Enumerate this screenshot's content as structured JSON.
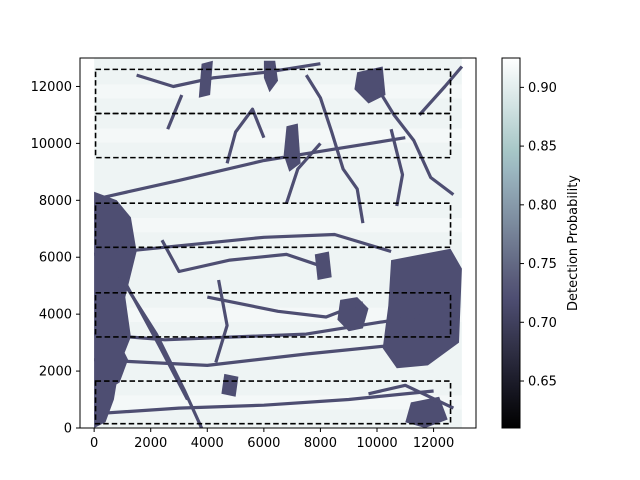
{
  "chart_data": {
    "type": "heatmap",
    "title": "",
    "xlabel": "",
    "ylabel": "",
    "xlim": [
      -500,
      13500
    ],
    "ylim": [
      0,
      13000
    ],
    "x_ticks": [
      0,
      2000,
      4000,
      6000,
      8000,
      10000,
      12000
    ],
    "y_ticks": [
      0,
      2000,
      4000,
      6000,
      8000,
      10000,
      12000
    ],
    "x_tick_labels": [
      "0",
      "2000",
      "4000",
      "6000",
      "8000",
      "10000",
      "12000"
    ],
    "y_tick_labels": [
      "0",
      "2000",
      "4000",
      "6000",
      "8000",
      "10000",
      "12000"
    ],
    "colormap": "bone",
    "field_extent": {
      "x": [
        0,
        13000
      ],
      "y": [
        0,
        13000
      ]
    },
    "background_probability": 0.91,
    "feature_probability": 0.72,
    "colorbar": {
      "label": "Detection Probability",
      "min": 0.61,
      "max": 0.925,
      "ticks": [
        0.65,
        0.7,
        0.75,
        0.8,
        0.85,
        0.9
      ],
      "tick_labels": [
        "0.65",
        "0.70",
        "0.75",
        "0.80",
        "0.85",
        "0.90"
      ]
    },
    "survey_lanes": [
      {
        "x0": 50,
        "x1": 12600,
        "y0": 150,
        "y1": 1650
      },
      {
        "x0": 50,
        "x1": 12600,
        "y0": 3200,
        "y1": 4750
      },
      {
        "x0": 50,
        "x1": 12600,
        "y0": 6350,
        "y1": 7900
      },
      {
        "x0": 50,
        "x1": 12600,
        "y0": 9500,
        "y1": 11050
      },
      {
        "x0": 50,
        "x1": 12600,
        "y0": 11050,
        "y1": 12600
      }
    ],
    "feature_areas": [
      [
        [
          0,
          8300
        ],
        [
          800,
          8000
        ],
        [
          1300,
          7400
        ],
        [
          1500,
          6200
        ],
        [
          1100,
          4600
        ],
        [
          1300,
          3200
        ],
        [
          900,
          2200
        ],
        [
          700,
          1000
        ],
        [
          400,
          200
        ],
        [
          0,
          0
        ]
      ],
      [
        [
          300,
          3200
        ],
        [
          900,
          3000
        ],
        [
          1200,
          2400
        ],
        [
          900,
          1600
        ],
        [
          400,
          1300
        ],
        [
          100,
          2000
        ]
      ],
      [
        [
          10500,
          5900
        ],
        [
          12600,
          6300
        ],
        [
          13000,
          5600
        ],
        [
          12900,
          3000
        ],
        [
          11800,
          2200
        ],
        [
          10700,
          2100
        ],
        [
          10200,
          2800
        ],
        [
          10400,
          4300
        ]
      ],
      [
        [
          8700,
          4500
        ],
        [
          9300,
          4600
        ],
        [
          9700,
          4200
        ],
        [
          9500,
          3500
        ],
        [
          9000,
          3400
        ],
        [
          8600,
          3800
        ]
      ],
      [
        [
          6800,
          10600
        ],
        [
          7200,
          10700
        ],
        [
          7300,
          9300
        ],
        [
          6900,
          9000
        ],
        [
          6700,
          9600
        ]
      ],
      [
        [
          7800,
          6100
        ],
        [
          8300,
          6200
        ],
        [
          8400,
          5300
        ],
        [
          7900,
          5200
        ]
      ],
      [
        [
          6000,
          12900
        ],
        [
          6400,
          12900
        ],
        [
          6500,
          12200
        ],
        [
          6200,
          11800
        ],
        [
          6000,
          12300
        ]
      ],
      [
        [
          3800,
          12800
        ],
        [
          4200,
          12900
        ],
        [
          4100,
          11700
        ],
        [
          3700,
          11600
        ]
      ],
      [
        [
          11200,
          900
        ],
        [
          12200,
          1100
        ],
        [
          12500,
          300
        ],
        [
          11700,
          0
        ],
        [
          11000,
          200
        ]
      ],
      [
        [
          4600,
          1900
        ],
        [
          5100,
          1800
        ],
        [
          5000,
          1100
        ],
        [
          4500,
          1200
        ]
      ],
      [
        [
          9300,
          12500
        ],
        [
          10200,
          12700
        ],
        [
          10300,
          11700
        ],
        [
          9700,
          11400
        ],
        [
          9200,
          11900
        ]
      ]
    ],
    "feature_lines": [
      [
        [
          800,
          5500
        ],
        [
          2200,
          3300
        ],
        [
          3200,
          1300
        ],
        [
          3800,
          0
        ]
      ],
      [
        [
          1100,
          5100
        ],
        [
          2300,
          2900
        ],
        [
          3300,
          1000
        ]
      ],
      [
        [
          0,
          6100
        ],
        [
          3000,
          6400
        ],
        [
          6000,
          6700
        ],
        [
          8500,
          6800
        ],
        [
          10500,
          6200
        ]
      ],
      [
        [
          2400,
          6600
        ],
        [
          3000,
          5500
        ],
        [
          4800,
          5900
        ],
        [
          6800,
          6100
        ],
        [
          8000,
          5700
        ]
      ],
      [
        [
          0,
          3300
        ],
        [
          2500,
          3100
        ],
        [
          5000,
          3200
        ],
        [
          7500,
          3300
        ],
        [
          10000,
          3700
        ],
        [
          12600,
          4100
        ]
      ],
      [
        [
          4000,
          4600
        ],
        [
          6500,
          4100
        ],
        [
          8200,
          3900
        ],
        [
          9500,
          4400
        ]
      ],
      [
        [
          0,
          2400
        ],
        [
          4000,
          2200
        ],
        [
          7500,
          2600
        ],
        [
          10500,
          2900
        ]
      ],
      [
        [
          0,
          500
        ],
        [
          3000,
          700
        ],
        [
          6000,
          800
        ],
        [
          9000,
          1000
        ],
        [
          12000,
          1300
        ]
      ],
      [
        [
          300,
          8100
        ],
        [
          3000,
          8700
        ],
        [
          6000,
          9400
        ],
        [
          8500,
          9800
        ],
        [
          11000,
          10200
        ]
      ],
      [
        [
          1500,
          12400
        ],
        [
          2800,
          12000
        ],
        [
          4200,
          12300
        ],
        [
          6100,
          12500
        ],
        [
          8000,
          12800
        ]
      ],
      [
        [
          4700,
          9300
        ],
        [
          5000,
          10400
        ],
        [
          5600,
          11200
        ],
        [
          6000,
          10200
        ]
      ],
      [
        [
          7500,
          12400
        ],
        [
          8000,
          11600
        ],
        [
          8400,
          10400
        ],
        [
          8800,
          9100
        ],
        [
          9300,
          8400
        ],
        [
          9500,
          7200
        ]
      ],
      [
        [
          9800,
          12300
        ],
        [
          10600,
          11000
        ],
        [
          11300,
          10100
        ],
        [
          11900,
          8800
        ],
        [
          12700,
          8200
        ]
      ],
      [
        [
          6800,
          7900
        ],
        [
          7200,
          9100
        ],
        [
          8000,
          10000
        ]
      ],
      [
        [
          4400,
          5200
        ],
        [
          4700,
          3600
        ],
        [
          4300,
          2300
        ]
      ],
      [
        [
          11500,
          11000
        ],
        [
          12400,
          12000
        ],
        [
          13000,
          12700
        ]
      ],
      [
        [
          10500,
          10500
        ],
        [
          10900,
          8900
        ],
        [
          10700,
          7800
        ]
      ],
      [
        [
          2600,
          10500
        ],
        [
          3100,
          11700
        ]
      ],
      [
        [
          9700,
          1200
        ],
        [
          11000,
          1500
        ],
        [
          12700,
          700
        ]
      ]
    ]
  }
}
